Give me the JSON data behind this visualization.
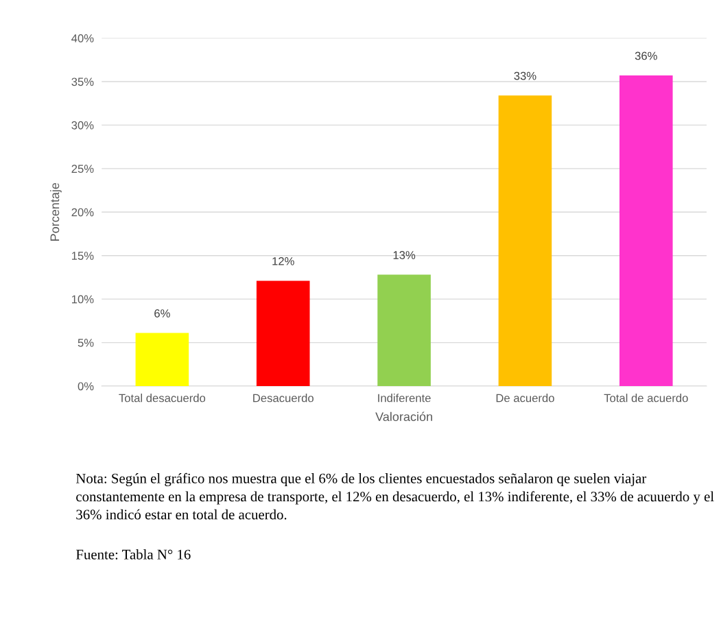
{
  "chart_data": {
    "type": "bar",
    "xlabel": "Valoración",
    "ylabel": "Porcentaje",
    "categories": [
      "Total desacuerdo",
      "Desacuerdo",
      "Indiferente",
      "De acuerdo",
      "Total de acuerdo"
    ],
    "values": [
      6.1,
      12.1,
      12.8,
      33.4,
      35.7
    ],
    "value_labels": [
      "6%",
      "12%",
      "13%",
      "33%",
      "36%"
    ],
    "colors": [
      "#ffff00",
      "#ff0000",
      "#92d050",
      "#ffc000",
      "#ff33cc"
    ],
    "ylim": [
      0,
      40
    ],
    "yticks": [
      {
        "value": 0,
        "label": "0%"
      },
      {
        "value": 5,
        "label": "5%"
      },
      {
        "value": 10,
        "label": "10%"
      },
      {
        "value": 15,
        "label": "15%"
      },
      {
        "value": 20,
        "label": "20%"
      },
      {
        "value": 25,
        "label": "25%"
      },
      {
        "value": 30,
        "label": "30%"
      },
      {
        "value": 35,
        "label": "35%"
      },
      {
        "value": 40,
        "label": "40%"
      }
    ],
    "grid": "y",
    "annotations": [
      "Nota: Según el gráfico nos muestra que el 6% de los clientes encuestados señalaron qe suelen viajar constantemente en la empresa de transporte, el 12% en desacuerdo, el 13% indiferente, el 33% de acuuerdo y el 36% indicó estar en total de acuerdo.",
      "Fuente: Tabla N° 16"
    ]
  }
}
